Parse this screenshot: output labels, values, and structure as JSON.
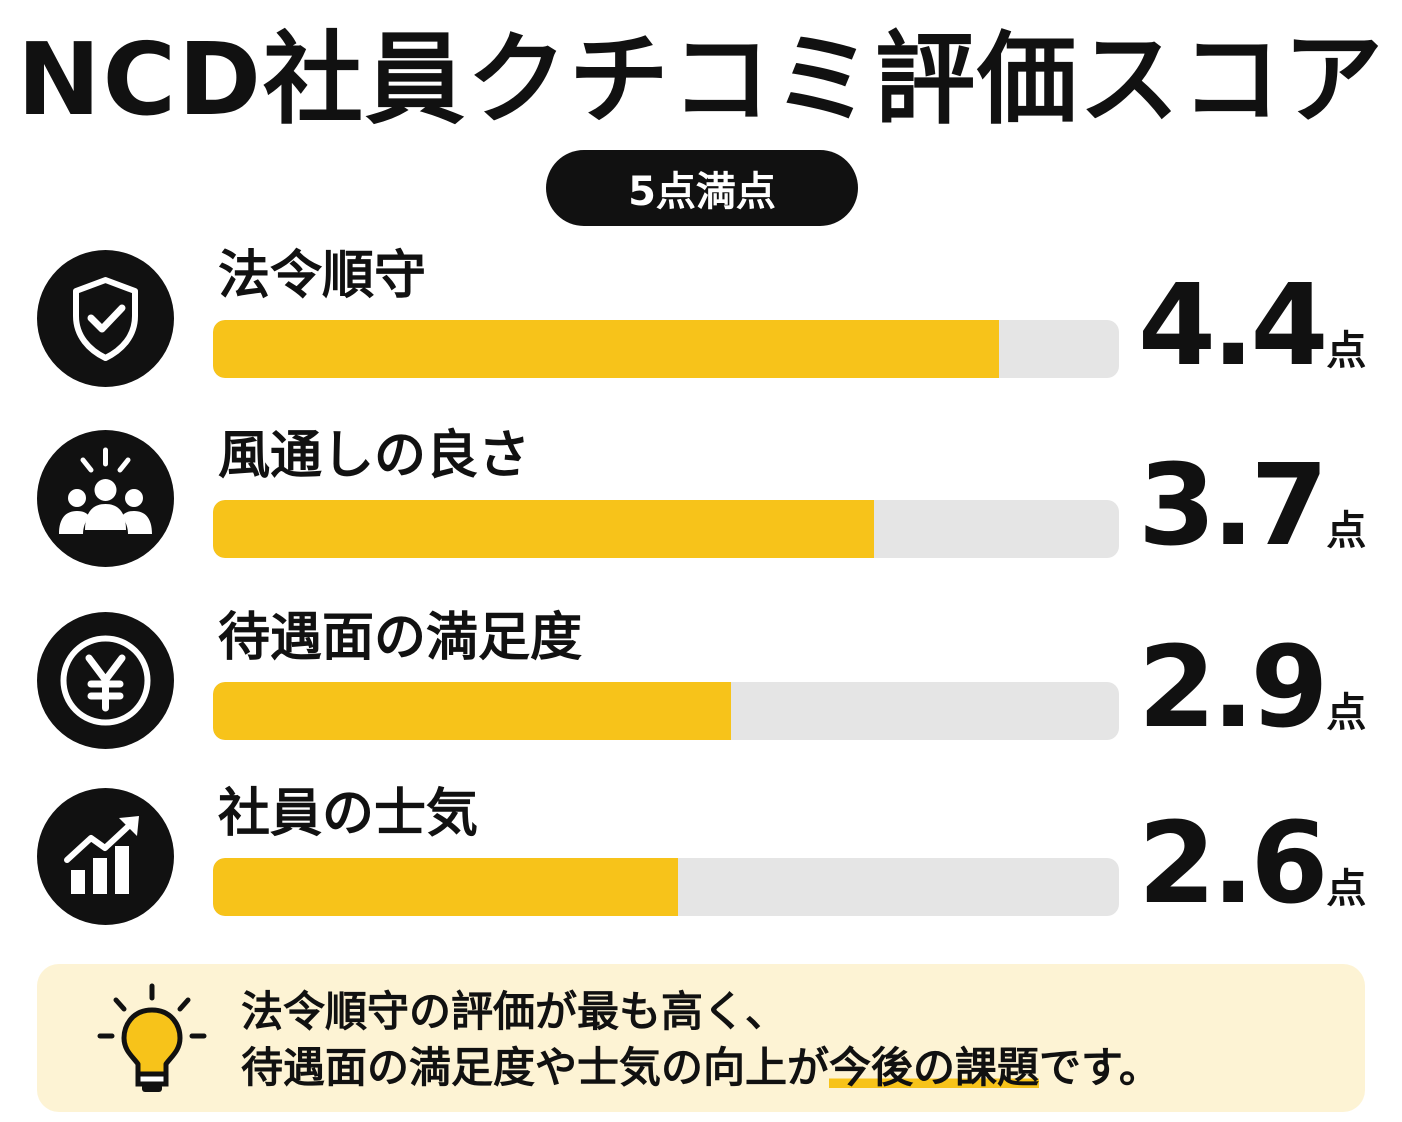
{
  "title": "NCD社員クチコミ評価スコア",
  "scale_label": "5点満点",
  "colors": {
    "bar_fill": "#f7c31a",
    "bar_track": "#e5e5e5",
    "note_bg": "#fdf3d4",
    "text": "#111111"
  },
  "chart_data": {
    "type": "bar",
    "orientation": "horizontal",
    "categories": [
      "法令順守",
      "風通しの良さ",
      "待遇面の満足度",
      "社員の士気"
    ],
    "values": [
      4.4,
      3.7,
      2.9,
      2.6
    ],
    "value_labels": [
      "4.4",
      "3.7",
      "2.9",
      "2.6"
    ],
    "unit": "点",
    "xlim": [
      0,
      5
    ],
    "icons": [
      "shield-check-icon",
      "team-people-icon",
      "yen-coin-icon",
      "growth-chart-icon"
    ]
  },
  "note": {
    "icon": "lightbulb-icon",
    "line1": "法令順守の評価が最も高く、",
    "line2_pre": "待遇面の満足度や士気の向上が",
    "line2_highlight": "今後の課題",
    "line2_post": "です。"
  }
}
